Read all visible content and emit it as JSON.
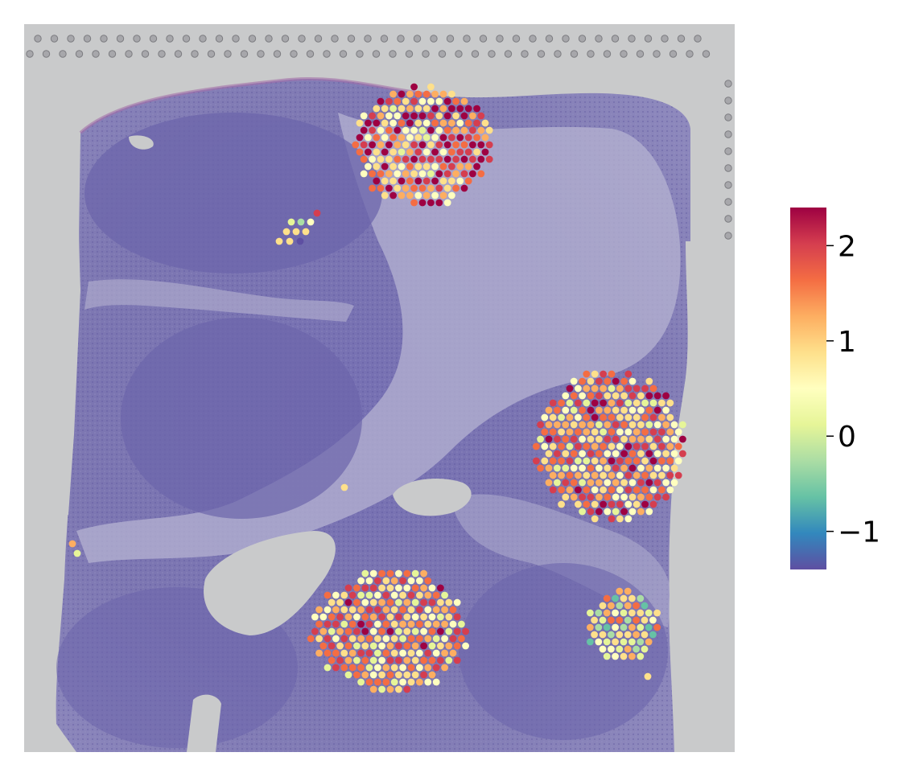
{
  "figure": {
    "kind": "spatial transcriptomics spots overlaid on H&E tissue image",
    "tissue_background_color": "#c9cacb",
    "tissue_stain_color": "#6a63a8",
    "stroma_color": "#a9a6c9"
  },
  "colorbar": {
    "colormap": "Spectral_r",
    "range": [
      -1.4,
      2.4
    ],
    "ticks": [
      {
        "value": 2,
        "label": "2"
      },
      {
        "value": 1,
        "label": "1"
      },
      {
        "value": 0,
        "label": "0"
      },
      {
        "value": -1,
        "label": "−1"
      }
    ],
    "stops": [
      "#5e4fa2",
      "#3288bd",
      "#66c2a5",
      "#abdda4",
      "#e6f598",
      "#ffffbf",
      "#fee08b",
      "#fdae61",
      "#f46d43",
      "#d53e4f",
      "#9e0142"
    ]
  }
}
